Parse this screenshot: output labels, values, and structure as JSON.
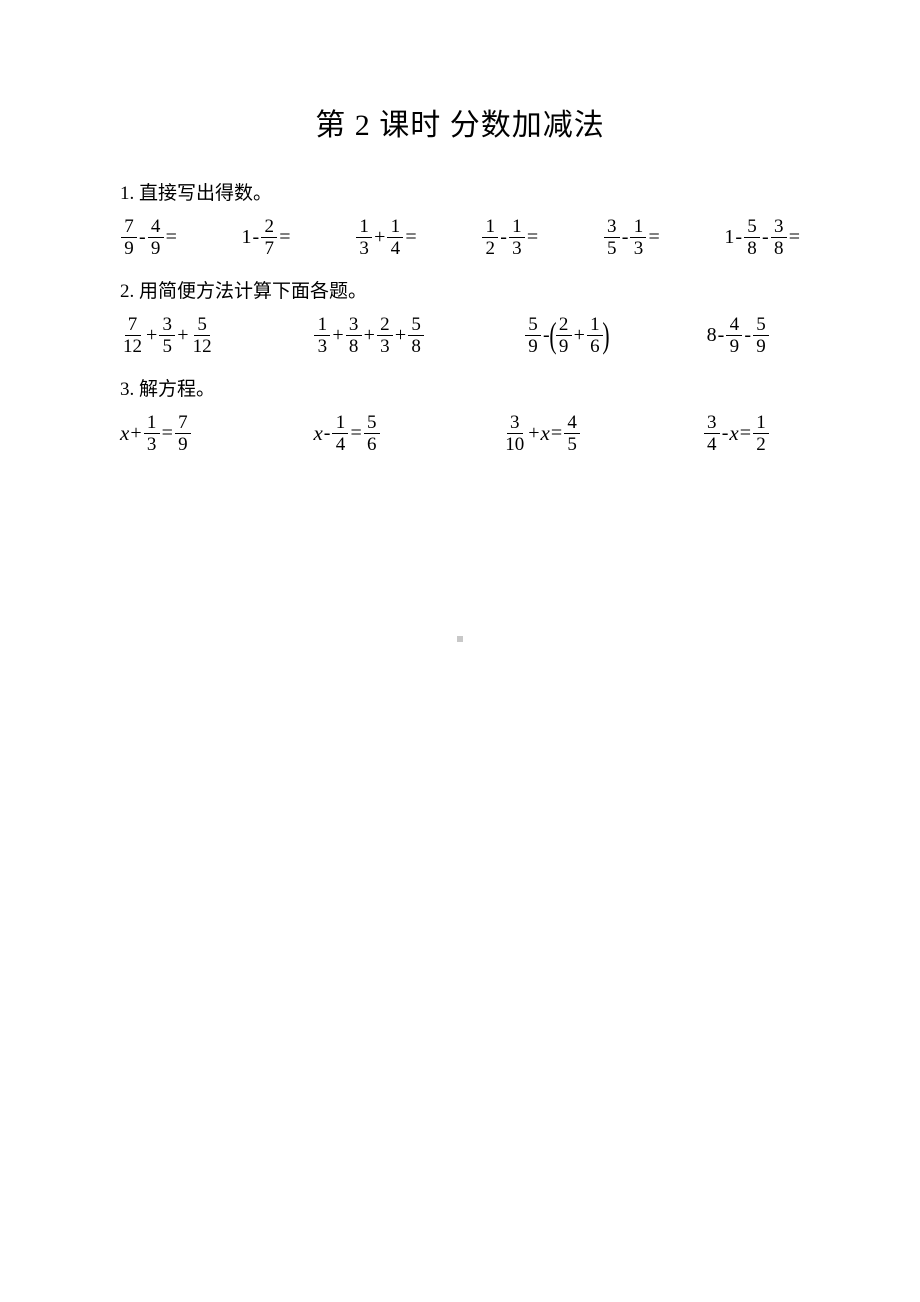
{
  "title": "第 2 课时  分数加减法",
  "sections": {
    "s1": "1. 直接写出得数。",
    "s2": "2.  用简便方法计算下面各题。",
    "s3": "3.  解方程。"
  },
  "row1": {
    "e1": {
      "a_num": "7",
      "a_den": "9",
      "op": "-",
      "b_num": "4",
      "b_den": "9"
    },
    "e2": {
      "whole": "1",
      "op": "-",
      "b_num": "2",
      "b_den": "7"
    },
    "e3": {
      "a_num": "1",
      "a_den": "3",
      "op": "+",
      "b_num": "1",
      "b_den": "4"
    },
    "e4": {
      "a_num": "1",
      "a_den": "2",
      "op": "-",
      "b_num": "1",
      "b_den": "3"
    },
    "e5": {
      "a_num": "3",
      "a_den": "5",
      "op": "-",
      "b_num": "1",
      "b_den": "3"
    },
    "e6": {
      "whole": "1",
      "op1": "-",
      "b_num": "5",
      "b_den": "8",
      "op2": "-",
      "c_num": "3",
      "c_den": "8"
    }
  },
  "row2": {
    "e1": {
      "a_num": "7",
      "a_den": "12",
      "op1": "+",
      "b_num": "3",
      "b_den": "5",
      "op2": "+",
      "c_num": "5",
      "c_den": "12"
    },
    "e2": {
      "a_num": "1",
      "a_den": "3",
      "op1": "+",
      "b_num": "3",
      "b_den": "8",
      "op2": "+",
      "c_num": "2",
      "c_den": "3",
      "op3": "+",
      "d_num": "5",
      "d_den": "8"
    },
    "e3": {
      "a_num": "5",
      "a_den": "9",
      "op1": "-",
      "b_num": "2",
      "b_den": "9",
      "op2": "+",
      "c_num": "1",
      "c_den": "6"
    },
    "e4": {
      "whole": "8",
      "op1": "-",
      "b_num": "4",
      "b_den": "9",
      "op2": "-",
      "c_num": "5",
      "c_den": "9"
    }
  },
  "row3": {
    "e1": {
      "var": "x",
      "op": "+",
      "a_num": "1",
      "a_den": "3",
      "eq": "=",
      "b_num": "7",
      "b_den": "9"
    },
    "e2": {
      "var": "x",
      "op": "-",
      "a_num": "1",
      "a_den": "4",
      "eq": "=",
      "b_num": "5",
      "b_den": "6"
    },
    "e3": {
      "a_num": "3",
      "a_den": "10",
      "op": "+",
      "var": "x",
      "eq": "=",
      "b_num": "4",
      "b_den": "5"
    },
    "e4": {
      "a_num": "3",
      "a_den": "4",
      "op": "-",
      "var": "x",
      "eq": "=",
      "b_num": "1",
      "b_den": "2"
    }
  },
  "glyphs": {
    "eq": "=",
    "lparen": "(",
    "rparen": ")"
  },
  "colors": {
    "text": "#000000",
    "background": "#ffffff",
    "dot": "#c8c8c8"
  },
  "fonts": {
    "title_size_pt": 22,
    "body_size_pt": 14,
    "family_cjk": "SimSun",
    "family_math": "Times New Roman"
  }
}
